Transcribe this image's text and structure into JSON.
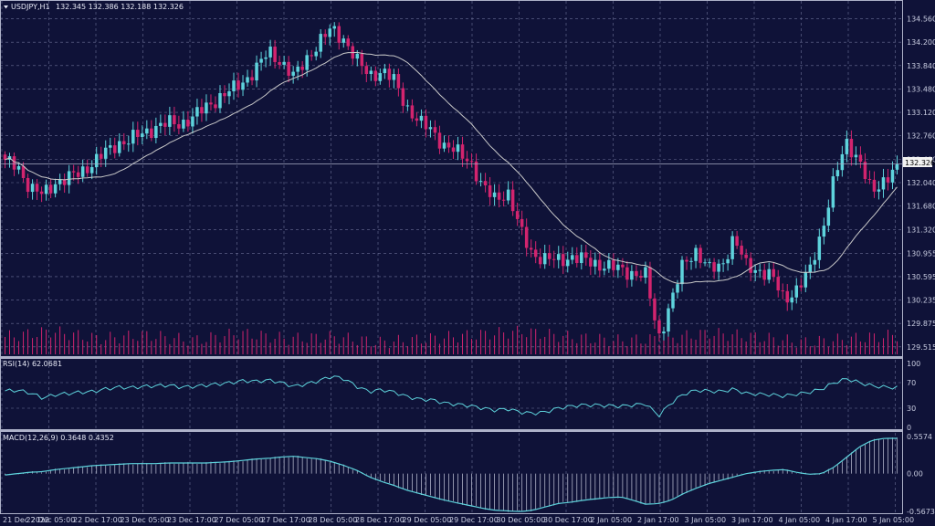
{
  "window": {
    "symbol_label": "USDJPY,H1",
    "ohlc_text": "132.345 132.386 132.188 132.326"
  },
  "colors": {
    "background": "#0f1238",
    "grid": "#6c7096",
    "bull": "#5ed3dc",
    "bear": "#d2246e",
    "ma": "#c9c9c9",
    "rsi": "#5ed3dc",
    "macd_signal": "#5ed3dc",
    "macd_hist": "#b0b3c8",
    "volume": "#d2246e"
  },
  "price_panel": {
    "current_price_label": "132.326",
    "y_ticks": [
      "134.560",
      "134.200",
      "133.840",
      "133.480",
      "133.120",
      "132.760",
      "132.400",
      "132.040",
      "131.680",
      "131.320",
      "130.955",
      "130.595",
      "130.235",
      "129.875",
      "129.515"
    ],
    "ylim": [
      129.4,
      134.68
    ]
  },
  "rsi_panel": {
    "label": "RSI(14) 62.0681",
    "y_ticks": [
      "100",
      "70",
      "30",
      "0"
    ],
    "ylim": [
      0,
      100
    ]
  },
  "macd_panel": {
    "label": "MACD(12,26,9) 0.3648 0.4352",
    "y_ticks": [
      "0.5574",
      "0.00",
      "-0.5673"
    ],
    "ylim": [
      -0.5673,
      0.5574
    ]
  },
  "x_ticks": [
    "21 Dec 2022",
    "22 Dec 05:00",
    "22 Dec 17:00",
    "23 Dec 05:00",
    "23 Dec 17:00",
    "27 Dec 05:00",
    "27 Dec 17:00",
    "28 Dec 05:00",
    "28 Dec 17:00",
    "29 Dec 05:00",
    "29 Dec 17:00",
    "30 Dec 05:00",
    "30 Dec 17:00",
    "2 Jan 05:00",
    "2 Jan 17:00",
    "3 Jan 05:00",
    "3 Jan 17:00",
    "4 Jan 05:00",
    "4 Jan 17:00",
    "5 Jan 05:00"
  ],
  "chart_data": {
    "type": "candlestick",
    "title": "USDJPY,H1",
    "close_anchors": [
      132.35,
      132.3,
      131.95,
      131.85,
      132.05,
      132.1,
      132.2,
      132.35,
      132.5,
      132.65,
      132.7,
      132.8,
      132.9,
      132.95,
      132.95,
      133.05,
      133.2,
      133.35,
      133.45,
      133.6,
      133.8,
      134.05,
      133.9,
      133.65,
      133.95,
      134.2,
      134.4,
      134.25,
      133.9,
      133.7,
      133.75,
      133.6,
      133.2,
      132.95,
      132.85,
      132.6,
      132.5,
      132.4,
      131.95,
      131.8,
      131.9,
      131.3,
      130.95,
      130.85,
      130.85,
      130.9,
      130.85,
      130.8,
      130.75,
      130.7,
      130.65,
      130.6,
      129.65,
      130.2,
      130.8,
      131.0,
      130.7,
      130.75,
      131.2,
      130.75,
      130.7,
      130.6,
      130.25,
      130.4,
      130.65,
      131.3,
      132.1,
      132.65,
      132.4,
      131.85,
      132.1,
      132.33
    ],
    "candle_count": 196,
    "ma_period": 20,
    "rsi_anchors": [
      57,
      58,
      54,
      46,
      51,
      53,
      55,
      56,
      60,
      63,
      62,
      64,
      65,
      66,
      63,
      64,
      66,
      68,
      70,
      73,
      72,
      74,
      70,
      64,
      68,
      73,
      80,
      76,
      64,
      56,
      59,
      55,
      48,
      44,
      43,
      38,
      36,
      34,
      30,
      27,
      29,
      24,
      22,
      24,
      30,
      33,
      35,
      35,
      34,
      33,
      35,
      37,
      18,
      38,
      52,
      58,
      57,
      56,
      60,
      53,
      52,
      51,
      49,
      52,
      55,
      60,
      70,
      76,
      70,
      65,
      63,
      62.07
    ],
    "macd_anchors": [
      -0.02,
      0.0,
      0.02,
      0.03,
      0.06,
      0.08,
      0.1,
      0.12,
      0.13,
      0.14,
      0.15,
      0.15,
      0.15,
      0.16,
      0.16,
      0.16,
      0.16,
      0.17,
      0.18,
      0.2,
      0.22,
      0.23,
      0.25,
      0.26,
      0.24,
      0.22,
      0.18,
      0.12,
      0.05,
      -0.05,
      -0.12,
      -0.18,
      -0.25,
      -0.3,
      -0.35,
      -0.4,
      -0.44,
      -0.48,
      -0.52,
      -0.55,
      -0.56,
      -0.57,
      -0.55,
      -0.5,
      -0.45,
      -0.43,
      -0.4,
      -0.38,
      -0.36,
      -0.35,
      -0.4,
      -0.46,
      -0.45,
      -0.4,
      -0.3,
      -0.22,
      -0.15,
      -0.1,
      -0.05,
      0.0,
      0.03,
      0.05,
      0.06,
      0.02,
      -0.01,
      0.0,
      0.1,
      0.25,
      0.4,
      0.5,
      0.53,
      0.53
    ],
    "volume_level": [
      0.6,
      0.9,
      0.5,
      0.7,
      0.4,
      0.8,
      0.5,
      0.6,
      0.3,
      0.5,
      0.7,
      0.9,
      0.6,
      0.4,
      0.5,
      0.8,
      0.6,
      0.3,
      0.5,
      0.7
    ]
  }
}
